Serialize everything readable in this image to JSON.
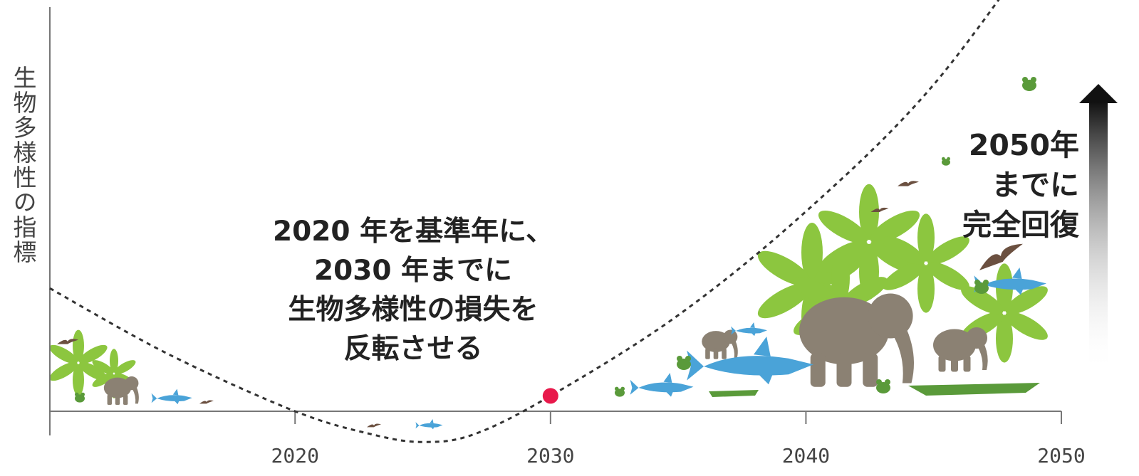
{
  "chart_data": {
    "type": "line",
    "title": "",
    "xlabel": "",
    "ylabel": "生物多様性の指標",
    "x_ticks": [
      "2020",
      "2030",
      "2040",
      "2050"
    ],
    "xlim": [
      2010.4,
      2050
    ],
    "series": [
      {
        "style": "dashed",
        "color": "#333333",
        "x": [
          2010.4,
          2015,
          2020,
          2023,
          2025,
          2027,
          2030,
          2035,
          2040,
          2045,
          2050
        ],
        "y": [
          0.32,
          0.15,
          0.0,
          -0.06,
          -0.08,
          -0.06,
          0.04,
          0.25,
          0.52,
          0.85,
          1.3
        ]
      }
    ],
    "highlight_point": {
      "x": 2030,
      "y": 0.04,
      "color": "#e8194b"
    },
    "annotations": [
      {
        "lines": [
          "2020 年を基準年に、",
          "2030 年までに",
          "生物多様性の損失を",
          "反転させる"
        ]
      },
      {
        "lines": [
          "2050年",
          "までに",
          "完全回復"
        ]
      }
    ],
    "colors": {
      "leaf_green": "#8cc63f",
      "animal_gray": "#8b8173",
      "shark_blue": "#4aa3d8",
      "croc_green": "#5a9a3a",
      "bird_brown": "#6b5040",
      "axis": "#777777"
    },
    "illustration_icons": [
      "elephant-icon",
      "shark-icon",
      "crocodile-icon",
      "leaf-plant-icon",
      "bird-icon",
      "frog-icon",
      "up-arrow-gradient"
    ]
  }
}
